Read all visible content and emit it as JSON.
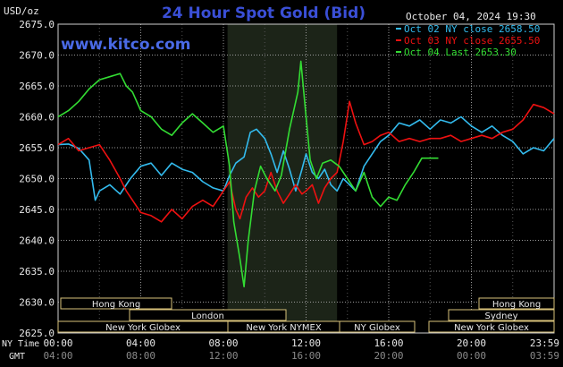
{
  "header": {
    "title": "24 Hour Spot Gold (Bid)",
    "units": "USD/oz",
    "timestamp": "October 04, 2024 19:30",
    "brand": "www.kitco.com"
  },
  "colors": {
    "background": "#000000",
    "grid": "#9a9a9a",
    "title": "#3a4fd6",
    "brand": "#4a6ae6",
    "market_band": "#1c2418",
    "session_box": "#d8c27a",
    "series_oct02": "#33bbee",
    "series_oct03": "#ee1111",
    "series_oct04": "#33dd33"
  },
  "time_rows": {
    "ny_label": "NY Time",
    "gmt_label": "GMT"
  },
  "markets": [
    {
      "name": "Hong Kong",
      "row": 0
    },
    {
      "name": "London",
      "row": 1
    },
    {
      "name": "New York Globex",
      "row": 2
    },
    {
      "name": "New York NYMEX",
      "row": 2
    },
    {
      "name": "NY Globex",
      "row": 2
    },
    {
      "name": "Hong Kong",
      "row": 0
    },
    {
      "name": "Sydney",
      "row": 1
    },
    {
      "name": "New York Globex",
      "row": 2
    }
  ],
  "chart_data": {
    "type": "line",
    "title": "24 Hour Spot Gold (Bid)",
    "ylabel": "USD/oz",
    "ylim": [
      2625.0,
      2675.0
    ],
    "y_ticks": [
      "2675.0",
      "2670.0",
      "2665.0",
      "2660.0",
      "2655.0",
      "2650.0",
      "2645.0",
      "2640.0",
      "2635.0",
      "2630.0",
      "2625.0"
    ],
    "x_unit": "hours since 00:00 NY time",
    "xlim": [
      0,
      24
    ],
    "x_ticks_ny": [
      "00:00",
      "04:00",
      "08:00",
      "12:00",
      "16:00",
      "20:00",
      "23:59"
    ],
    "x_ticks_gmt": [
      "04:00",
      "08:00",
      "12:00",
      "16:00",
      "20:00",
      "00:00",
      "03:59"
    ],
    "grid": true,
    "legend_position": "top-right",
    "series": [
      {
        "name": "Oct 02 NY close 2658.50",
        "color": "#33bbee",
        "points": [
          [
            0,
            2655.5
          ],
          [
            0.5,
            2655.6
          ],
          [
            1,
            2654.9
          ],
          [
            1.5,
            2653.0
          ],
          [
            1.8,
            2646.5
          ],
          [
            2,
            2648.0
          ],
          [
            2.5,
            2649.0
          ],
          [
            3,
            2647.5
          ],
          [
            3.5,
            2650.0
          ],
          [
            4,
            2652.0
          ],
          [
            4.5,
            2652.5
          ],
          [
            5,
            2650.5
          ],
          [
            5.5,
            2652.5
          ],
          [
            6,
            2651.5
          ],
          [
            6.5,
            2651.0
          ],
          [
            7,
            2649.5
          ],
          [
            7.5,
            2648.5
          ],
          [
            8,
            2648.0
          ],
          [
            8.3,
            2650.5
          ],
          [
            8.6,
            2652.5
          ],
          [
            9,
            2653.5
          ],
          [
            9.3,
            2657.5
          ],
          [
            9.6,
            2658.0
          ],
          [
            10,
            2656.5
          ],
          [
            10.3,
            2654.0
          ],
          [
            10.6,
            2651.0
          ],
          [
            10.9,
            2654.5
          ],
          [
            11.2,
            2651.5
          ],
          [
            11.5,
            2648.0
          ],
          [
            11.8,
            2651.5
          ],
          [
            12,
            2654.0
          ],
          [
            12.3,
            2651.0
          ],
          [
            12.6,
            2650.0
          ],
          [
            12.9,
            2651.5
          ],
          [
            13.2,
            2649.0
          ],
          [
            13.5,
            2648.0
          ],
          [
            13.8,
            2650.0
          ],
          [
            14.1,
            2649.0
          ],
          [
            14.4,
            2648.0
          ],
          [
            14.8,
            2652.0
          ],
          [
            15.2,
            2654.0
          ],
          [
            15.6,
            2656.0
          ],
          [
            16,
            2657.0
          ],
          [
            16.5,
            2659.0
          ],
          [
            17,
            2658.5
          ],
          [
            17.5,
            2659.5
          ],
          [
            18,
            2658.0
          ],
          [
            18.5,
            2659.5
          ],
          [
            19,
            2659.0
          ],
          [
            19.5,
            2660.0
          ],
          [
            20,
            2658.5
          ],
          [
            20.5,
            2657.5
          ],
          [
            21,
            2658.5
          ],
          [
            21.5,
            2657.0
          ],
          [
            22,
            2656.0
          ],
          [
            22.5,
            2654.0
          ],
          [
            23,
            2655.0
          ],
          [
            23.5,
            2654.5
          ],
          [
            24,
            2656.5
          ]
        ]
      },
      {
        "name": "Oct 03 NY close 2655.50",
        "color": "#ee1111",
        "points": [
          [
            0,
            2655.5
          ],
          [
            0.5,
            2656.5
          ],
          [
            1,
            2654.5
          ],
          [
            1.5,
            2655.0
          ],
          [
            2,
            2655.5
          ],
          [
            2.5,
            2653.0
          ],
          [
            3,
            2650.0
          ],
          [
            3.3,
            2648.0
          ],
          [
            3.6,
            2646.5
          ],
          [
            4,
            2644.5
          ],
          [
            4.5,
            2644.0
          ],
          [
            5,
            2643.0
          ],
          [
            5.5,
            2645.0
          ],
          [
            6,
            2643.5
          ],
          [
            6.5,
            2645.5
          ],
          [
            7,
            2646.5
          ],
          [
            7.5,
            2645.5
          ],
          [
            8,
            2648.0
          ],
          [
            8.3,
            2649.5
          ],
          [
            8.6,
            2645.0
          ],
          [
            8.8,
            2643.5
          ],
          [
            9.1,
            2647.0
          ],
          [
            9.4,
            2648.5
          ],
          [
            9.7,
            2647.0
          ],
          [
            10,
            2648.0
          ],
          [
            10.3,
            2651.0
          ],
          [
            10.6,
            2648.0
          ],
          [
            10.9,
            2646.0
          ],
          [
            11.2,
            2647.5
          ],
          [
            11.5,
            2649.0
          ],
          [
            11.8,
            2647.5
          ],
          [
            12,
            2648.0
          ],
          [
            12.3,
            2649.0
          ],
          [
            12.6,
            2646.0
          ],
          [
            12.9,
            2648.5
          ],
          [
            13.2,
            2650.0
          ],
          [
            13.5,
            2651.0
          ],
          [
            13.8,
            2656.0
          ],
          [
            14.1,
            2662.5
          ],
          [
            14.4,
            2659.0
          ],
          [
            14.8,
            2655.5
          ],
          [
            15.2,
            2656.0
          ],
          [
            15.6,
            2657.0
          ],
          [
            16,
            2657.5
          ],
          [
            16.5,
            2656.0
          ],
          [
            17,
            2656.5
          ],
          [
            17.5,
            2656.0
          ],
          [
            18,
            2656.5
          ],
          [
            18.5,
            2656.5
          ],
          [
            19,
            2657.0
          ],
          [
            19.5,
            2656.0
          ],
          [
            20,
            2656.5
          ],
          [
            20.5,
            2657.0
          ],
          [
            21,
            2656.5
          ],
          [
            21.5,
            2657.5
          ],
          [
            22,
            2658.0
          ],
          [
            22.5,
            2659.5
          ],
          [
            23,
            2662.0
          ],
          [
            23.5,
            2661.5
          ],
          [
            24,
            2660.5
          ]
        ]
      },
      {
        "name": "Oct 04 Last 2653.30",
        "color": "#33dd33",
        "points": [
          [
            0,
            2660.0
          ],
          [
            0.5,
            2661.0
          ],
          [
            1,
            2662.5
          ],
          [
            1.5,
            2664.5
          ],
          [
            2,
            2666.0
          ],
          [
            2.5,
            2666.5
          ],
          [
            3,
            2667.0
          ],
          [
            3.3,
            2665.0
          ],
          [
            3.6,
            2664.0
          ],
          [
            4,
            2661.0
          ],
          [
            4.5,
            2660.0
          ],
          [
            5,
            2658.0
          ],
          [
            5.5,
            2657.0
          ],
          [
            6,
            2659.0
          ],
          [
            6.5,
            2660.5
          ],
          [
            7,
            2659.0
          ],
          [
            7.5,
            2657.5
          ],
          [
            8,
            2658.5
          ],
          [
            8.3,
            2652.0
          ],
          [
            8.5,
            2643.0
          ],
          [
            8.8,
            2637.0
          ],
          [
            9.0,
            2632.5
          ],
          [
            9.2,
            2640.0
          ],
          [
            9.5,
            2648.0
          ],
          [
            9.8,
            2652.0
          ],
          [
            10.1,
            2650.0
          ],
          [
            10.5,
            2648.0
          ],
          [
            10.8,
            2650.5
          ],
          [
            11.2,
            2658.0
          ],
          [
            11.6,
            2664.0
          ],
          [
            11.75,
            2669.0
          ],
          [
            12.0,
            2660.0
          ],
          [
            12.2,
            2653.0
          ],
          [
            12.5,
            2650.0
          ],
          [
            12.8,
            2652.5
          ],
          [
            13.2,
            2653.0
          ],
          [
            13.6,
            2652.0
          ],
          [
            14.0,
            2650.0
          ],
          [
            14.4,
            2648.0
          ],
          [
            14.8,
            2651.0
          ],
          [
            15.2,
            2647.0
          ],
          [
            15.6,
            2645.5
          ],
          [
            16.0,
            2647.0
          ],
          [
            16.4,
            2646.5
          ],
          [
            16.8,
            2649.0
          ],
          [
            17.2,
            2651.0
          ],
          [
            17.6,
            2653.3
          ],
          [
            18.0,
            2653.3
          ],
          [
            18.4,
            2653.3
          ]
        ]
      }
    ]
  }
}
